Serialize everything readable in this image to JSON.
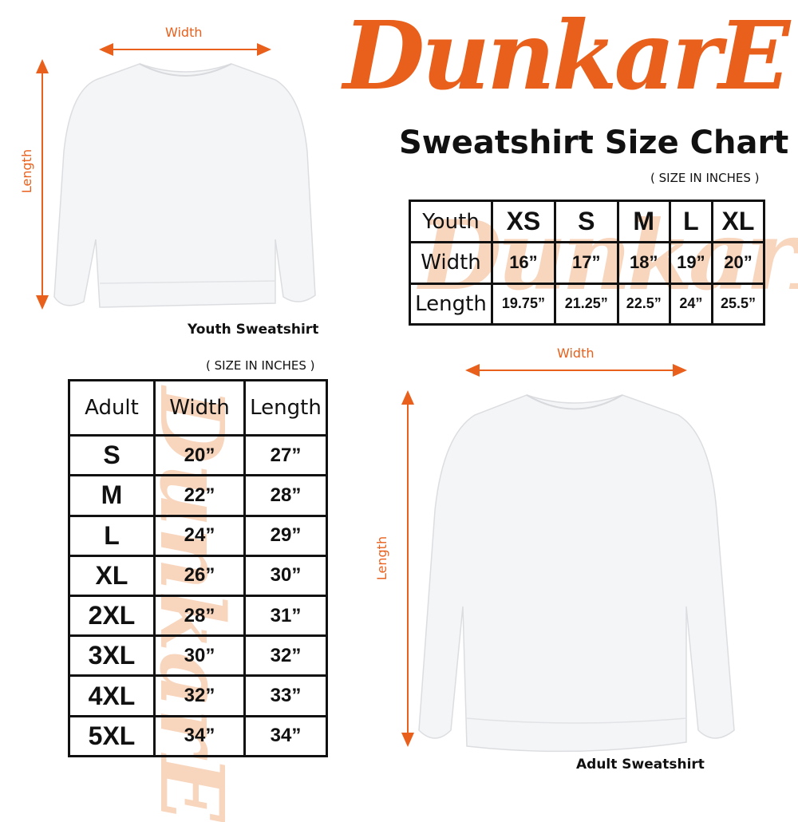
{
  "brand": {
    "logo_text": "DunkarE",
    "color": "#e8601c"
  },
  "title": "Sweatshirt Size Chart",
  "youth": {
    "size_note": "( SIZE IN INCHES )",
    "header": [
      "Youth",
      "XS",
      "S",
      "M",
      "L",
      "XL"
    ],
    "rows": [
      {
        "label": "Width",
        "values": [
          "16”",
          "17”",
          "18”",
          "19”",
          "20”"
        ]
      },
      {
        "label": "Length",
        "values": [
          "19.75”",
          "21.25”",
          "22.5”",
          "24”",
          "25.5”"
        ]
      }
    ],
    "image": {
      "width_label": "Width",
      "length_label": "Length",
      "caption": "Youth Sweatshirt"
    }
  },
  "adult": {
    "size_note": "( SIZE IN INCHES )",
    "header": [
      "Adult",
      "Width",
      "Length"
    ],
    "rows": [
      [
        "S",
        "20”",
        "27”"
      ],
      [
        "M",
        "22”",
        "28”"
      ],
      [
        "L",
        "24”",
        "29”"
      ],
      [
        "XL",
        "26”",
        "30”"
      ],
      [
        "2XL",
        "28”",
        "31”"
      ],
      [
        "3XL",
        "30”",
        "32”"
      ],
      [
        "4XL",
        "32”",
        "33”"
      ],
      [
        "5XL",
        "34”",
        "34”"
      ]
    ],
    "image": {
      "width_label": "Width",
      "length_label": "Length",
      "caption": "Adult Sweatshirt"
    }
  }
}
